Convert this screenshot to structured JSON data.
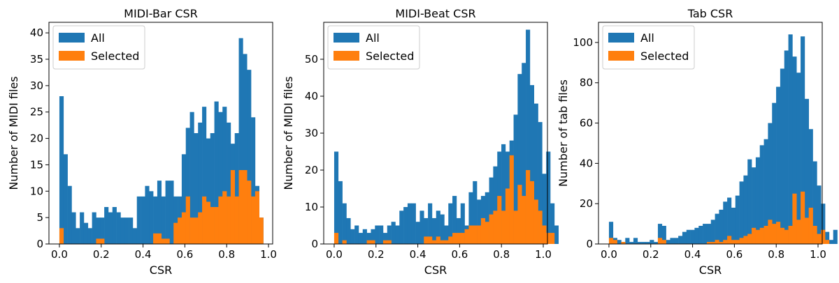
{
  "colors": {
    "all": "#1f77b4",
    "selected": "#ff7f0e"
  },
  "chart_data": [
    {
      "type": "bar",
      "title": "MIDI-Bar CSR",
      "xlabel": "CSR",
      "ylabel": "Number of MIDI files",
      "xlim": [
        -0.05,
        1.02
      ],
      "ylim": [
        0,
        42
      ],
      "xticks": [
        "0.0",
        "0.2",
        "0.4",
        "0.6",
        "0.8",
        "1.0"
      ],
      "yticks": [
        "0",
        "5",
        "10",
        "15",
        "20",
        "25",
        "30",
        "35",
        "40"
      ],
      "bin_start": 0.0,
      "bin_width": 0.0195,
      "legend": {
        "position": "top-left",
        "entries": [
          "All",
          "Selected"
        ]
      },
      "series": [
        {
          "name": "All",
          "values": [
            28,
            17,
            11,
            6,
            3,
            6,
            4,
            3,
            6,
            5,
            5,
            7,
            6,
            7,
            6,
            5,
            5,
            5,
            3,
            9,
            9,
            11,
            10,
            9,
            12,
            9,
            12,
            12,
            9,
            9,
            17,
            22,
            25,
            21,
            23,
            26,
            20,
            21,
            27,
            25,
            26,
            23,
            19,
            21,
            39,
            36,
            33,
            24,
            11,
            5
          ]
        },
        {
          "name": "Selected",
          "values": [
            3,
            0,
            0,
            0,
            0,
            0,
            0,
            0,
            0,
            1,
            1,
            0,
            0,
            0,
            0,
            0,
            0,
            0,
            0,
            0,
            0,
            0,
            0,
            2,
            2,
            1,
            1,
            0,
            4,
            5,
            6,
            9,
            5,
            5,
            6,
            9,
            8,
            7,
            7,
            9,
            10,
            9,
            14,
            9,
            14,
            14,
            12,
            9,
            10,
            5
          ]
        }
      ]
    },
    {
      "type": "bar",
      "title": "MIDI-Beat CSR",
      "xlabel": "CSR",
      "ylabel": "Number of MIDI files",
      "xlim": [
        -0.05,
        1.02
      ],
      "ylim": [
        0,
        60
      ],
      "xticks": [
        "0.0",
        "0.2",
        "0.4",
        "0.6",
        "0.8",
        "1.0"
      ],
      "yticks": [
        "0",
        "10",
        "20",
        "30",
        "40",
        "50"
      ],
      "bin_start": 0.0,
      "bin_width": 0.0195,
      "legend": {
        "position": "top-left",
        "entries": [
          "All",
          "Selected"
        ]
      },
      "series": [
        {
          "name": "All",
          "values": [
            25,
            17,
            11,
            7,
            4,
            5,
            3,
            4,
            3,
            4,
            5,
            5,
            3,
            5,
            6,
            5,
            9,
            10,
            11,
            11,
            6,
            9,
            7,
            11,
            7,
            9,
            8,
            5,
            11,
            13,
            7,
            11,
            5,
            14,
            17,
            12,
            13,
            14,
            18,
            21,
            25,
            27,
            25,
            28,
            35,
            46,
            49,
            58,
            43,
            38,
            33,
            19,
            25,
            11,
            5
          ]
        },
        {
          "name": "Selected",
          "values": [
            3,
            0,
            1,
            0,
            0,
            0,
            0,
            0,
            1,
            1,
            0,
            0,
            1,
            1,
            0,
            0,
            0,
            0,
            0,
            0,
            0,
            0,
            2,
            2,
            1,
            2,
            1,
            1,
            2,
            3,
            3,
            3,
            4,
            5,
            5,
            5,
            7,
            6,
            8,
            9,
            13,
            9,
            15,
            24,
            9,
            16,
            13,
            20,
            17,
            12,
            9,
            5,
            3,
            3,
            0
          ]
        }
      ]
    },
    {
      "type": "bar",
      "title": "Tab CSR",
      "xlabel": "CSR",
      "ylabel": "Number of tab files",
      "xlim": [
        -0.05,
        1.02
      ],
      "ylim": [
        0,
        110
      ],
      "xticks": [
        "0.0",
        "0.2",
        "0.4",
        "0.6",
        "0.8",
        "1.0"
      ],
      "yticks": [
        "0",
        "20",
        "40",
        "60",
        "80",
        "100"
      ],
      "bin_start": 0.0,
      "bin_width": 0.0195,
      "legend": {
        "position": "top-left",
        "entries": [
          "All",
          "Selected"
        ]
      },
      "series": [
        {
          "name": "All",
          "values": [
            11,
            3,
            2,
            1,
            3,
            1,
            3,
            1,
            1,
            1,
            2,
            1,
            10,
            9,
            2,
            3,
            3,
            4,
            6,
            7,
            7,
            8,
            9,
            10,
            10,
            12,
            15,
            17,
            21,
            23,
            18,
            24,
            31,
            34,
            42,
            38,
            43,
            49,
            52,
            60,
            70,
            78,
            87,
            96,
            104,
            93,
            85,
            103,
            72,
            57,
            41,
            29,
            20,
            6,
            2,
            7
          ]
        },
        {
          "name": "Selected",
          "values": [
            3,
            2,
            0,
            1,
            0,
            0,
            0,
            0,
            0,
            0,
            0,
            0,
            3,
            2,
            0,
            0,
            0,
            0,
            0,
            0,
            0,
            0,
            0,
            0,
            1,
            1,
            2,
            1,
            2,
            4,
            2,
            2,
            3,
            4,
            5,
            8,
            7,
            8,
            9,
            12,
            10,
            11,
            8,
            7,
            9,
            25,
            12,
            26,
            13,
            18,
            9,
            5,
            7,
            2,
            0,
            0
          ]
        }
      ]
    }
  ]
}
